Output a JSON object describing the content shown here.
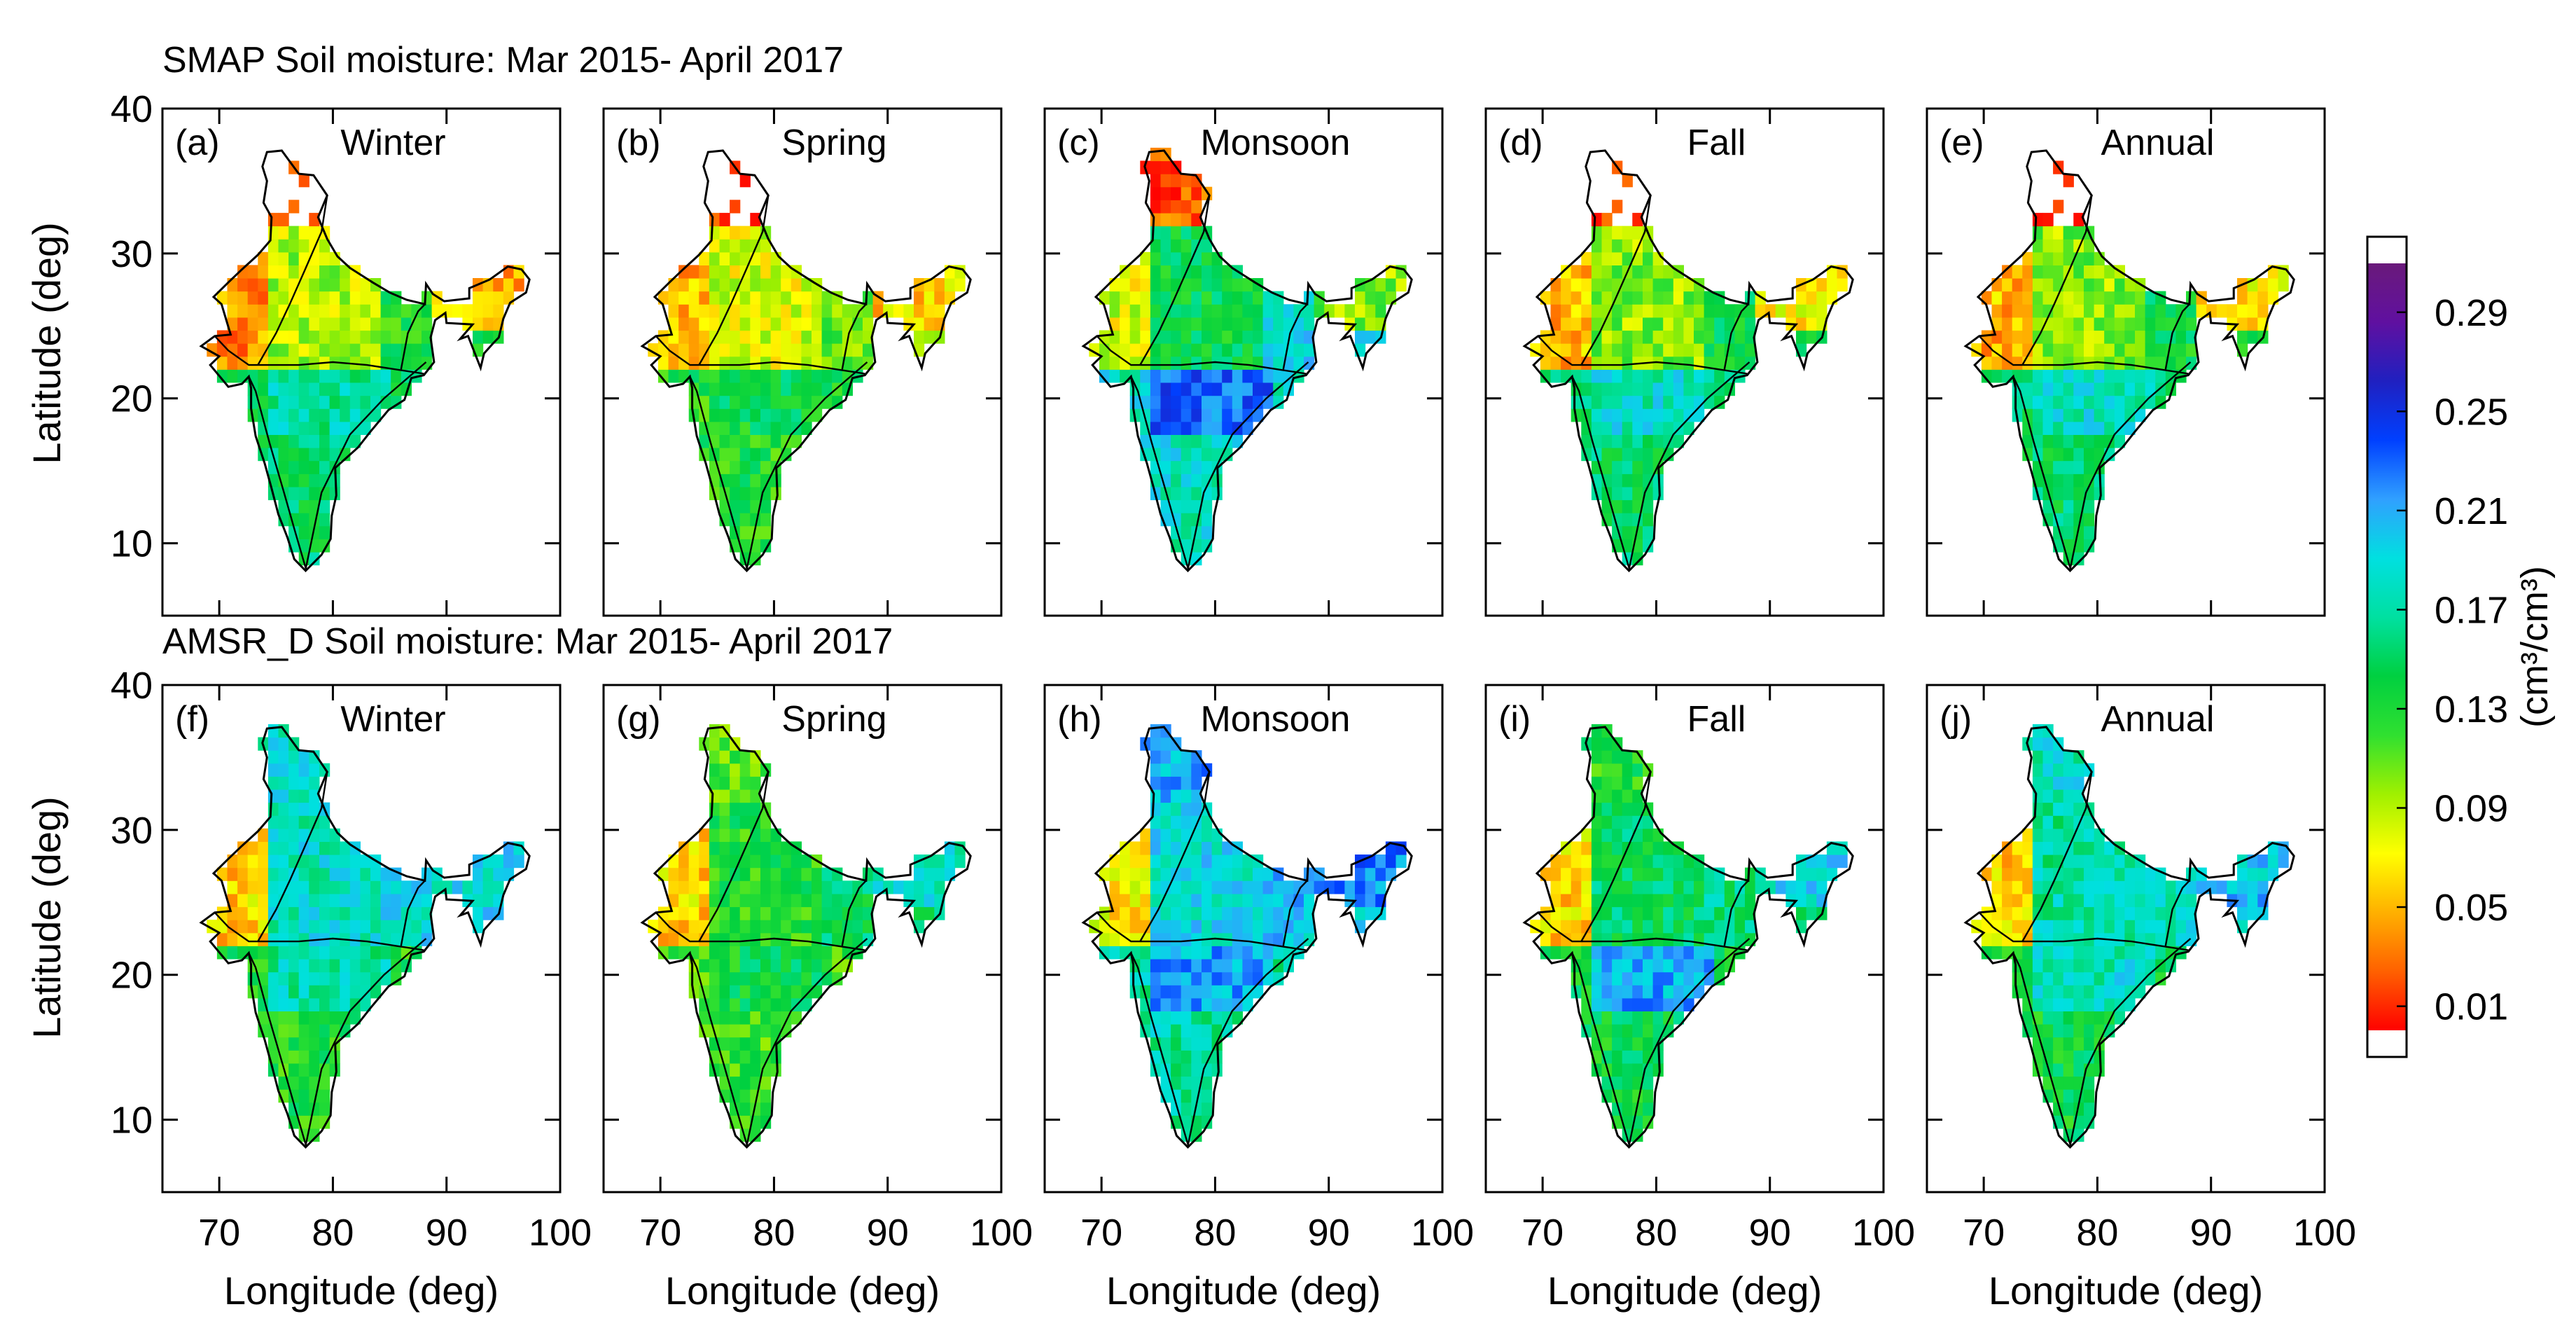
{
  "chart_data": {
    "type": "heatmap",
    "rows": [
      {
        "title": "SMAP Soil moisture: Mar 2015- April 2017",
        "dataset": "SMAP",
        "panels": [
          {
            "label": "(a)",
            "season": "Winter"
          },
          {
            "label": "(b)",
            "season": "Spring"
          },
          {
            "label": "(c)",
            "season": "Monsoon"
          },
          {
            "label": "(d)",
            "season": "Fall"
          },
          {
            "label": "(e)",
            "season": "Annual"
          }
        ]
      },
      {
        "title": "AMSR_D Soil moisture: Mar 2015- April 2017",
        "dataset": "AMSR_D",
        "panels": [
          {
            "label": "(f)",
            "season": "Winter"
          },
          {
            "label": "(g)",
            "season": "Spring"
          },
          {
            "label": "(h)",
            "season": "Monsoon"
          },
          {
            "label": "(i)",
            "season": "Fall"
          },
          {
            "label": "(j)",
            "season": "Annual"
          }
        ]
      }
    ],
    "xlabel": "Longitude (deg)",
    "ylabel": "Latitude (deg)",
    "xlim": [
      65,
      100
    ],
    "ylim": [
      5,
      40
    ],
    "xticks": [
      "70",
      "80",
      "90",
      "100"
    ],
    "yticks": [
      "10",
      "20",
      "30",
      "40"
    ],
    "colorbar": {
      "label": "(cm³/cm³)",
      "range": [
        0.0,
        0.31
      ],
      "ticks": [
        "0.01",
        "0.05",
        "0.09",
        "0.13",
        "0.17",
        "0.21",
        "0.25",
        "0.29"
      ],
      "colors": [
        "#ff0000",
        "#ff6000",
        "#ffb000",
        "#ffff00",
        "#a0f000",
        "#30e030",
        "#00d040",
        "#00e0a0",
        "#00e0e0",
        "#30a0ff",
        "#0040ff",
        "#2020c0",
        "#6010a0",
        "#6a1a7a"
      ]
    },
    "region_means": {
      "_note": "approximate mean soil moisture (cm3/cm3) for [northwest, north, central, south, east, northeast, himalaya]",
      "SMAP_Winter": [
        0.04,
        0.09,
        0.17,
        0.15,
        0.13,
        0.05,
        0.0
      ],
      "SMAP_Spring": [
        0.05,
        0.08,
        0.14,
        0.13,
        0.11,
        0.06,
        0.0
      ],
      "SMAP_Monsoon": [
        0.08,
        0.14,
        0.23,
        0.18,
        0.19,
        0.1,
        0.02
      ],
      "SMAP_Fall": [
        0.05,
        0.1,
        0.18,
        0.15,
        0.14,
        0.07,
        0.0
      ],
      "SMAP_Annual": [
        0.05,
        0.1,
        0.18,
        0.15,
        0.14,
        0.07,
        0.0
      ],
      "AMSR_Winter": [
        0.06,
        0.18,
        0.17,
        0.13,
        0.19,
        0.19,
        0.18
      ],
      "AMSR_Spring": [
        0.06,
        0.13,
        0.14,
        0.12,
        0.15,
        0.18,
        0.11
      ],
      "AMSR_Monsoon": [
        0.07,
        0.19,
        0.21,
        0.17,
        0.2,
        0.22,
        0.21
      ],
      "AMSR_Fall": [
        0.06,
        0.15,
        0.21,
        0.14,
        0.16,
        0.19,
        0.13
      ],
      "AMSR_Annual": [
        0.06,
        0.17,
        0.18,
        0.14,
        0.18,
        0.2,
        0.18
      ]
    }
  }
}
